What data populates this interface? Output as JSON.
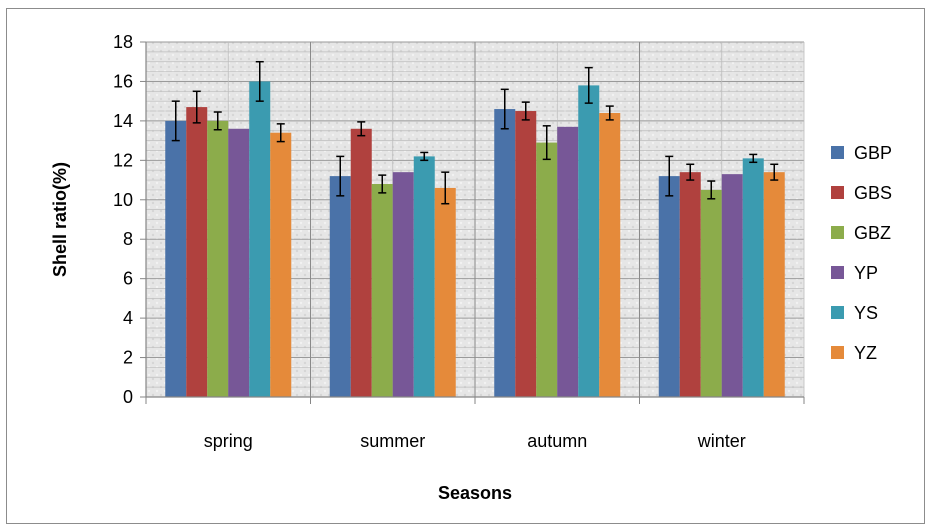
{
  "chart_data": {
    "type": "bar",
    "title": "",
    "xlabel": "Seasons",
    "ylabel": "Shell ratio(%)",
    "ylim": [
      0,
      18
    ],
    "yticks": [
      0,
      2,
      4,
      6,
      8,
      10,
      12,
      14,
      16,
      18
    ],
    "categories": [
      "spring",
      "summer",
      "autumn",
      "winter"
    ],
    "series": [
      {
        "name": "GBP",
        "color": "#4a72a8",
        "values": [
          14.0,
          11.2,
          14.6,
          11.2
        ],
        "errors": [
          1.0,
          1.0,
          1.0,
          1.0
        ]
      },
      {
        "name": "GBS",
        "color": "#b0413e",
        "values": [
          14.7,
          13.6,
          14.5,
          11.4
        ],
        "errors": [
          0.8,
          0.35,
          0.45,
          0.4
        ]
      },
      {
        "name": "GBZ",
        "color": "#8cac4b",
        "values": [
          14.0,
          10.8,
          12.9,
          10.5
        ],
        "errors": [
          0.45,
          0.45,
          0.85,
          0.45
        ]
      },
      {
        "name": "YP",
        "color": "#775797",
        "values": [
          13.6,
          11.4,
          13.7,
          11.3
        ],
        "errors": [
          0,
          0,
          0,
          0
        ]
      },
      {
        "name": "YS",
        "color": "#3b9bb0",
        "values": [
          16.0,
          12.2,
          15.8,
          12.1
        ],
        "errors": [
          1.0,
          0.2,
          0.9,
          0.2
        ]
      },
      {
        "name": "YZ",
        "color": "#e58a3a",
        "values": [
          13.4,
          10.6,
          14.4,
          11.4
        ],
        "errors": [
          0.45,
          0.8,
          0.35,
          0.4
        ]
      }
    ],
    "grid": true,
    "legend_position": "right"
  }
}
